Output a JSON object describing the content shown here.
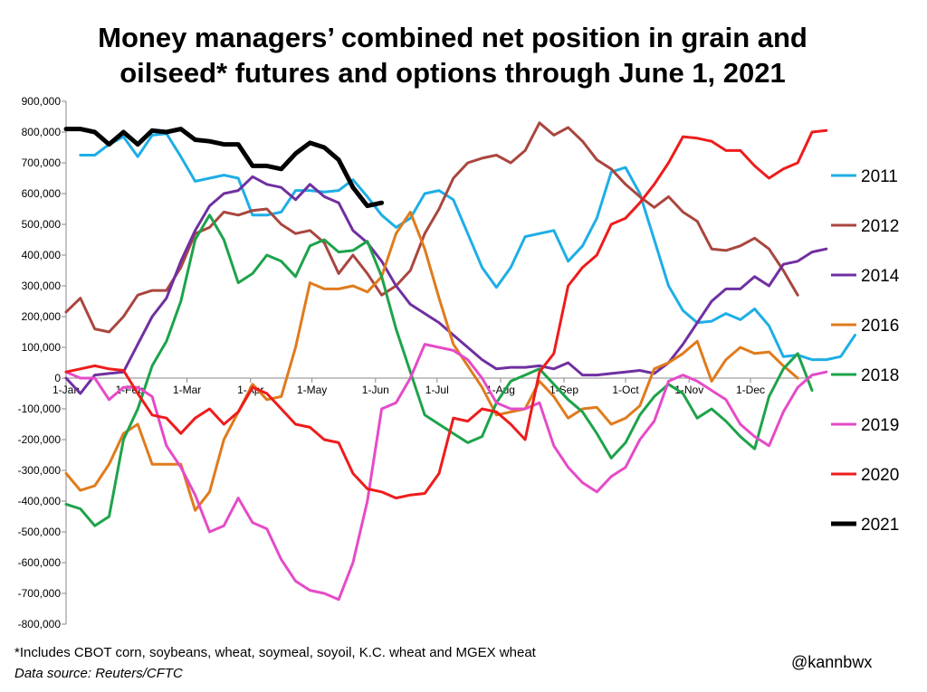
{
  "title_line1": "Money managers’ combined net position in grain and",
  "title_line2": "oilseed* futures and options through June 1, 2021",
  "footnote": "*Includes CBOT corn, soybeans, wheat, soymeal, soyoil, K.C. wheat and MGEX wheat",
  "source": "Data source: Reuters/CFTC",
  "handle": "@kannbwx",
  "chart_data": {
    "type": "line",
    "title": "Money managers’ combined net position in grain and oilseed* futures and options through June 1, 2021",
    "xlabel": "",
    "ylabel": "",
    "ylim": [
      -800000,
      900000
    ],
    "xlim": [
      0,
      52
    ],
    "grid": false,
    "legend": "right",
    "yticks": [
      900000,
      800000,
      700000,
      600000,
      500000,
      400000,
      300000,
      200000,
      100000,
      0,
      -100000,
      -200000,
      -300000,
      -400000,
      -500000,
      -600000,
      -700000,
      -800000
    ],
    "ytick_labels": [
      "900,000",
      "800,000",
      "700,000",
      "600,000",
      "500,000",
      "400,000",
      "300,000",
      "200,000",
      "100,000",
      "0",
      "-100,000",
      "-200,000",
      "-300,000",
      "-400,000",
      "-500,000",
      "-600,000",
      "-700,000",
      "-800,000"
    ],
    "xtick_labels": [
      "1-Jan",
      "1-Feb",
      "1-Mar",
      "1-Apr",
      "1-May",
      "1-Jun",
      "1-Jul",
      "1-Aug",
      "1-Sep",
      "1-Oct",
      "1-Nov",
      "1-Dec"
    ],
    "xtick_weeks": [
      0,
      4.43,
      8.43,
      12.86,
      17.14,
      21.57,
      25.86,
      30.29,
      34.71,
      39,
      43.43,
      47.71
    ],
    "series": [
      {
        "name": "2011",
        "color": "#1EAEE6",
        "width": 3,
        "values": [
          null,
          725000,
          725000,
          760000,
          785000,
          720000,
          790000,
          795000,
          720000,
          640000,
          650000,
          660000,
          650000,
          530000,
          530000,
          540000,
          610000,
          610000,
          605000,
          610000,
          645000,
          590000,
          530000,
          490000,
          520000,
          600000,
          610000,
          580000,
          470000,
          360000,
          295000,
          360000,
          460000,
          470000,
          480000,
          380000,
          430000,
          520000,
          670000,
          685000,
          600000,
          450000,
          300000,
          220000,
          180000,
          185000,
          210000,
          190000,
          225000,
          170000,
          70000,
          75000,
          60000,
          60000,
          70000,
          140000
        ]
      },
      {
        "name": "2012",
        "color": "#A9463F",
        "width": 3,
        "values": [
          215000,
          260000,
          160000,
          150000,
          200000,
          270000,
          285000,
          285000,
          360000,
          470000,
          490000,
          540000,
          530000,
          545000,
          550000,
          500000,
          470000,
          480000,
          440000,
          340000,
          400000,
          340000,
          270000,
          300000,
          350000,
          470000,
          550000,
          650000,
          700000,
          715000,
          725000,
          700000,
          740000,
          830000,
          790000,
          815000,
          770000,
          710000,
          680000,
          630000,
          590000,
          555000,
          590000,
          540000,
          510000,
          420000,
          415000,
          430000,
          455000,
          420000,
          350000,
          270000
        ]
      },
      {
        "name": "2014",
        "color": "#7030A0",
        "width": 3,
        "values": [
          0,
          -50000,
          10000,
          15000,
          20000,
          110000,
          200000,
          260000,
          380000,
          480000,
          560000,
          600000,
          610000,
          655000,
          630000,
          620000,
          580000,
          630000,
          590000,
          570000,
          480000,
          440000,
          380000,
          300000,
          240000,
          210000,
          180000,
          140000,
          100000,
          60000,
          30000,
          35000,
          35000,
          40000,
          30000,
          50000,
          10000,
          10000,
          15000,
          20000,
          25000,
          15000,
          50000,
          110000,
          180000,
          250000,
          290000,
          290000,
          330000,
          300000,
          370000,
          380000,
          410000,
          420000
        ]
      },
      {
        "name": "2016",
        "color": "#E07B1C",
        "width": 3,
        "values": [
          -310000,
          -365000,
          -350000,
          -280000,
          -180000,
          -150000,
          -280000,
          -280000,
          -280000,
          -430000,
          -370000,
          -200000,
          -110000,
          -20000,
          -70000,
          -60000,
          100000,
          310000,
          290000,
          290000,
          300000,
          280000,
          330000,
          470000,
          540000,
          420000,
          260000,
          110000,
          40000,
          -30000,
          -120000,
          -110000,
          -100000,
          -10000,
          -60000,
          -130000,
          -100000,
          -95000,
          -150000,
          -130000,
          -90000,
          30000,
          50000,
          80000,
          120000,
          -10000,
          60000,
          100000,
          80000,
          85000,
          40000,
          0
        ]
      },
      {
        "name": "2018",
        "color": "#1DA34A",
        "width": 3,
        "values": [
          -410000,
          -425000,
          -480000,
          -450000,
          -200000,
          -100000,
          40000,
          120000,
          250000,
          450000,
          530000,
          450000,
          310000,
          340000,
          400000,
          380000,
          330000,
          430000,
          450000,
          410000,
          415000,
          445000,
          330000,
          160000,
          20000,
          -120000,
          -150000,
          -180000,
          -210000,
          -190000,
          -80000,
          -10000,
          10000,
          30000,
          -20000,
          -70000,
          -110000,
          -180000,
          -260000,
          -210000,
          -120000,
          -60000,
          -20000,
          -50000,
          -130000,
          -100000,
          -140000,
          -190000,
          -230000,
          -60000,
          30000,
          80000,
          -40000
        ]
      },
      {
        "name": "2019",
        "color": "#E54BC8",
        "width": 3,
        "values": [
          20000,
          0,
          0,
          -70000,
          -30000,
          -30000,
          -60000,
          -220000,
          -290000,
          -380000,
          -500000,
          -480000,
          -390000,
          -470000,
          -490000,
          -590000,
          -660000,
          -690000,
          -700000,
          -720000,
          -600000,
          -400000,
          -100000,
          -80000,
          0,
          110000,
          100000,
          90000,
          60000,
          0,
          -80000,
          -100000,
          -100000,
          -80000,
          -220000,
          -290000,
          -340000,
          -370000,
          -320000,
          -290000,
          -200000,
          -140000,
          -10000,
          10000,
          -10000,
          -40000,
          -70000,
          -150000,
          -190000,
          -220000,
          -110000,
          -30000,
          10000,
          20000
        ]
      },
      {
        "name": "2020",
        "color": "#EE1C1C",
        "width": 3,
        "values": [
          20000,
          30000,
          40000,
          30000,
          25000,
          -50000,
          -120000,
          -130000,
          -180000,
          -130000,
          -100000,
          -150000,
          -110000,
          -30000,
          -50000,
          -100000,
          -150000,
          -160000,
          -200000,
          -210000,
          -310000,
          -360000,
          -370000,
          -390000,
          -380000,
          -375000,
          -310000,
          -130000,
          -140000,
          -100000,
          -110000,
          -150000,
          -200000,
          20000,
          80000,
          300000,
          360000,
          400000,
          500000,
          520000,
          570000,
          630000,
          700000,
          785000,
          780000,
          770000,
          740000,
          740000,
          690000,
          650000,
          680000,
          700000,
          800000,
          805000
        ]
      },
      {
        "name": "2021",
        "color": "#000000",
        "width": 5,
        "values": [
          810000,
          810000,
          800000,
          760000,
          800000,
          760000,
          805000,
          800000,
          810000,
          775000,
          770000,
          760000,
          760000,
          690000,
          690000,
          680000,
          730000,
          765000,
          750000,
          710000,
          620000,
          560000,
          570000
        ]
      }
    ]
  }
}
